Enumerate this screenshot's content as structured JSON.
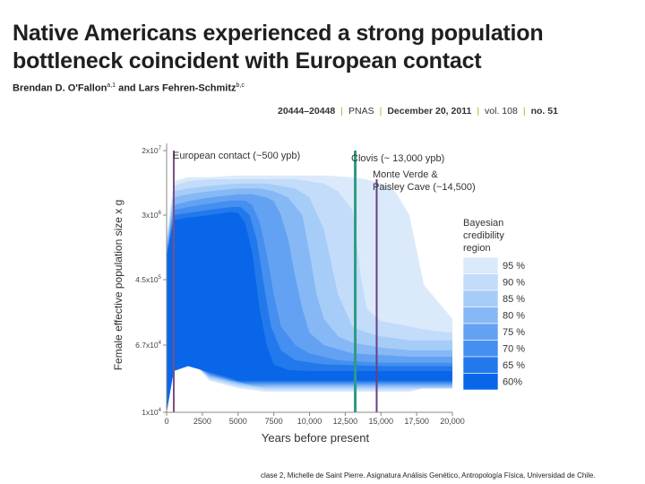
{
  "paper": {
    "title": "Native Americans experienced a strong population bottleneck coincident with European contact",
    "authors": [
      {
        "name": "Brendan D. O'Fallon",
        "aff": "a,1"
      },
      {
        "name": "Lars Fehren-Schmitz",
        "aff": "b,c"
      }
    ],
    "authors_joiner": "and",
    "journal": {
      "pages": "20444–20448",
      "name": "PNAS",
      "date": "December 20, 2011",
      "volume": "vol. 108",
      "number": "no. 51"
    }
  },
  "footer": "clase 2, Michelle de Saint Pierre.  Asignatura Análisis Genético, Antropología Física, Universidad de Chile.",
  "chart_data": {
    "type": "area",
    "title": "",
    "xlabel": "Years before present",
    "ylabel": "Female effective population size x g",
    "xlim": [
      0,
      20000
    ],
    "xticks": [
      0,
      2500,
      5000,
      7500,
      10000,
      12500,
      15000,
      17500,
      20000
    ],
    "xtick_labels": [
      "0",
      "2500",
      "5000",
      "7500",
      "10,000",
      "12,500",
      "15,000",
      "17,500",
      "20,000"
    ],
    "yscale": "log",
    "yticks": [
      {
        "mant": "1x10",
        "exp": "4"
      },
      {
        "mant": "6.7x10",
        "exp": "4"
      },
      {
        "mant": "4.5x10",
        "exp": "5"
      },
      {
        "mant": "3x10",
        "exp": "6"
      },
      {
        "mant": "2x10",
        "exp": "7"
      }
    ],
    "annotations": [
      {
        "label": "European contact (~500 ypb)",
        "x": 500,
        "color": "#7a4f86"
      },
      {
        "label": "Clovis (~ 13,000 ypb)",
        "x": 13200,
        "color": "#2f9b82"
      },
      {
        "label": "Monte Verde & Paisley Cave (~14,500)",
        "x": 14700,
        "color": "#6a3f80"
      }
    ],
    "legend": {
      "title": "Bayesian credibility region",
      "position": "right",
      "entries": [
        {
          "label": "95 %",
          "color": "#dbeafb"
        },
        {
          "label": "90 %",
          "color": "#c2dcfa"
        },
        {
          "label": "85 %",
          "color": "#a6ccf8"
        },
        {
          "label": "80 %",
          "color": "#86b8f5"
        },
        {
          "label": "75 %",
          "color": "#63a2f2"
        },
        {
          "label": "70 %",
          "color": "#448fef"
        },
        {
          "label": "65 %",
          "color": "#2179ec"
        },
        {
          "label": "60%",
          "color": "#0a66e8"
        }
      ]
    },
    "series": [
      {
        "name": "95 %",
        "x": [
          0,
          500,
          1500,
          3000,
          5000,
          7000,
          9000,
          11000,
          13000,
          14000,
          15000,
          16000,
          17000,
          18000,
          20000
        ],
        "upper": [
          1500000,
          8000000,
          9000000,
          9000000,
          9500000,
          9500000,
          9500000,
          9500000,
          9000000,
          8500000,
          7500000,
          6000000,
          3000000,
          400000,
          150000
        ],
        "lower": [
          10000,
          45000,
          50000,
          25000,
          20000,
          18000,
          18000,
          18000,
          18000,
          18000,
          18000,
          18000,
          18000,
          20000,
          20000
        ]
      },
      {
        "name": "90 %",
        "x": [
          0,
          500,
          1500,
          3000,
          5000,
          7000,
          9000,
          11000,
          12000,
          13000,
          13600,
          14000,
          15000,
          16000,
          17000,
          18000,
          20000
        ],
        "upper": [
          1400000,
          7000000,
          8000000,
          8500000,
          8500000,
          8500000,
          8500000,
          7500000,
          6000000,
          3500000,
          500000,
          200000,
          140000,
          130000,
          120000,
          110000,
          100000
        ],
        "lower": [
          10000,
          45000,
          50000,
          26000,
          21000,
          19000,
          19000,
          19000,
          19000,
          19000,
          19000,
          19000,
          19000,
          19000,
          19000,
          20000,
          20000
        ]
      },
      {
        "name": "85 %",
        "x": [
          0,
          500,
          1500,
          3000,
          5000,
          7000,
          8000,
          9000,
          10000,
          11000,
          12000,
          13000,
          14000,
          15000,
          17000,
          20000
        ],
        "upper": [
          1300000,
          6000000,
          6500000,
          7000000,
          7500000,
          7500000,
          7000000,
          6500000,
          5000000,
          2000000,
          300000,
          120000,
          100000,
          90000,
          80000,
          80000
        ],
        "lower": [
          10000,
          42000,
          48000,
          27000,
          22000,
          20000,
          20000,
          20000,
          20000,
          20000,
          20000,
          20000,
          20000,
          20000,
          20000,
          20000
        ]
      },
      {
        "name": "80 %",
        "x": [
          0,
          500,
          1500,
          3000,
          5000,
          6500,
          7500,
          8500,
          9500,
          10000,
          10500,
          11000,
          12000,
          13000,
          15000,
          17000,
          20000
        ],
        "upper": [
          1200000,
          5000000,
          5500000,
          6000000,
          6500000,
          6500000,
          6000000,
          5000000,
          3000000,
          1000000,
          300000,
          150000,
          90000,
          75000,
          65000,
          60000,
          60000
        ],
        "lower": [
          10000,
          40000,
          46000,
          28000,
          23000,
          21000,
          21000,
          21000,
          21000,
          21000,
          21000,
          21000,
          21000,
          21000,
          21000,
          21000,
          21000
        ]
      },
      {
        "name": "75 %",
        "x": [
          0,
          500,
          1500,
          3000,
          5000,
          6000,
          7000,
          7500,
          8000,
          8500,
          9000,
          9500,
          10000,
          11000,
          13000,
          17000,
          20000
        ],
        "upper": [
          1100000,
          4000000,
          4500000,
          5000000,
          5500000,
          5500000,
          5000000,
          4500000,
          3000000,
          1500000,
          500000,
          200000,
          100000,
          70000,
          55000,
          50000,
          50000
        ],
        "lower": [
          10000,
          38000,
          44000,
          29000,
          24000,
          22000,
          22000,
          22000,
          22000,
          22000,
          22000,
          22000,
          22000,
          22000,
          22000,
          22000,
          22000
        ]
      },
      {
        "name": "70 %",
        "x": [
          0,
          500,
          1500,
          3000,
          4500,
          5500,
          6000,
          6500,
          7000,
          7500,
          8000,
          9000,
          10000,
          12000,
          15000,
          20000
        ],
        "upper": [
          1000000,
          3500000,
          3800000,
          4200000,
          4600000,
          4600000,
          4000000,
          2500000,
          1000000,
          300000,
          120000,
          70000,
          55000,
          45000,
          42000,
          42000
        ],
        "lower": [
          10000,
          36000,
          42000,
          30000,
          25000,
          23000,
          23000,
          23000,
          23000,
          23000,
          23000,
          23000,
          23000,
          23000,
          23000,
          23000
        ]
      },
      {
        "name": "65 %",
        "x": [
          0,
          500,
          1500,
          3000,
          4500,
          5200,
          5800,
          6300,
          6800,
          7300,
          8000,
          9000,
          11000,
          15000,
          20000
        ],
        "upper": [
          950000,
          3000000,
          3200000,
          3500000,
          3800000,
          3800000,
          3000000,
          1500000,
          400000,
          120000,
          60000,
          45000,
          40000,
          38000,
          38000
        ],
        "lower": [
          10000,
          34000,
          40000,
          31000,
          26000,
          24000,
          24000,
          24000,
          24000,
          24000,
          24000,
          24000,
          24000,
          24000,
          24000
        ]
      },
      {
        "name": "60%",
        "x": [
          0,
          500,
          1500,
          3000,
          4500,
          5000,
          5500,
          6000,
          6500,
          7000,
          7500,
          8500,
          10000,
          15000,
          20000
        ],
        "upper": [
          900000,
          2600000,
          2800000,
          3000000,
          3300000,
          3200000,
          2400000,
          1000000,
          200000,
          70000,
          40000,
          34000,
          33000,
          33000,
          33000
        ],
        "lower": [
          10000,
          33000,
          38000,
          32000,
          27000,
          25000,
          25000,
          25000,
          25000,
          25000,
          25000,
          25000,
          25000,
          25000,
          25000
        ]
      }
    ]
  }
}
